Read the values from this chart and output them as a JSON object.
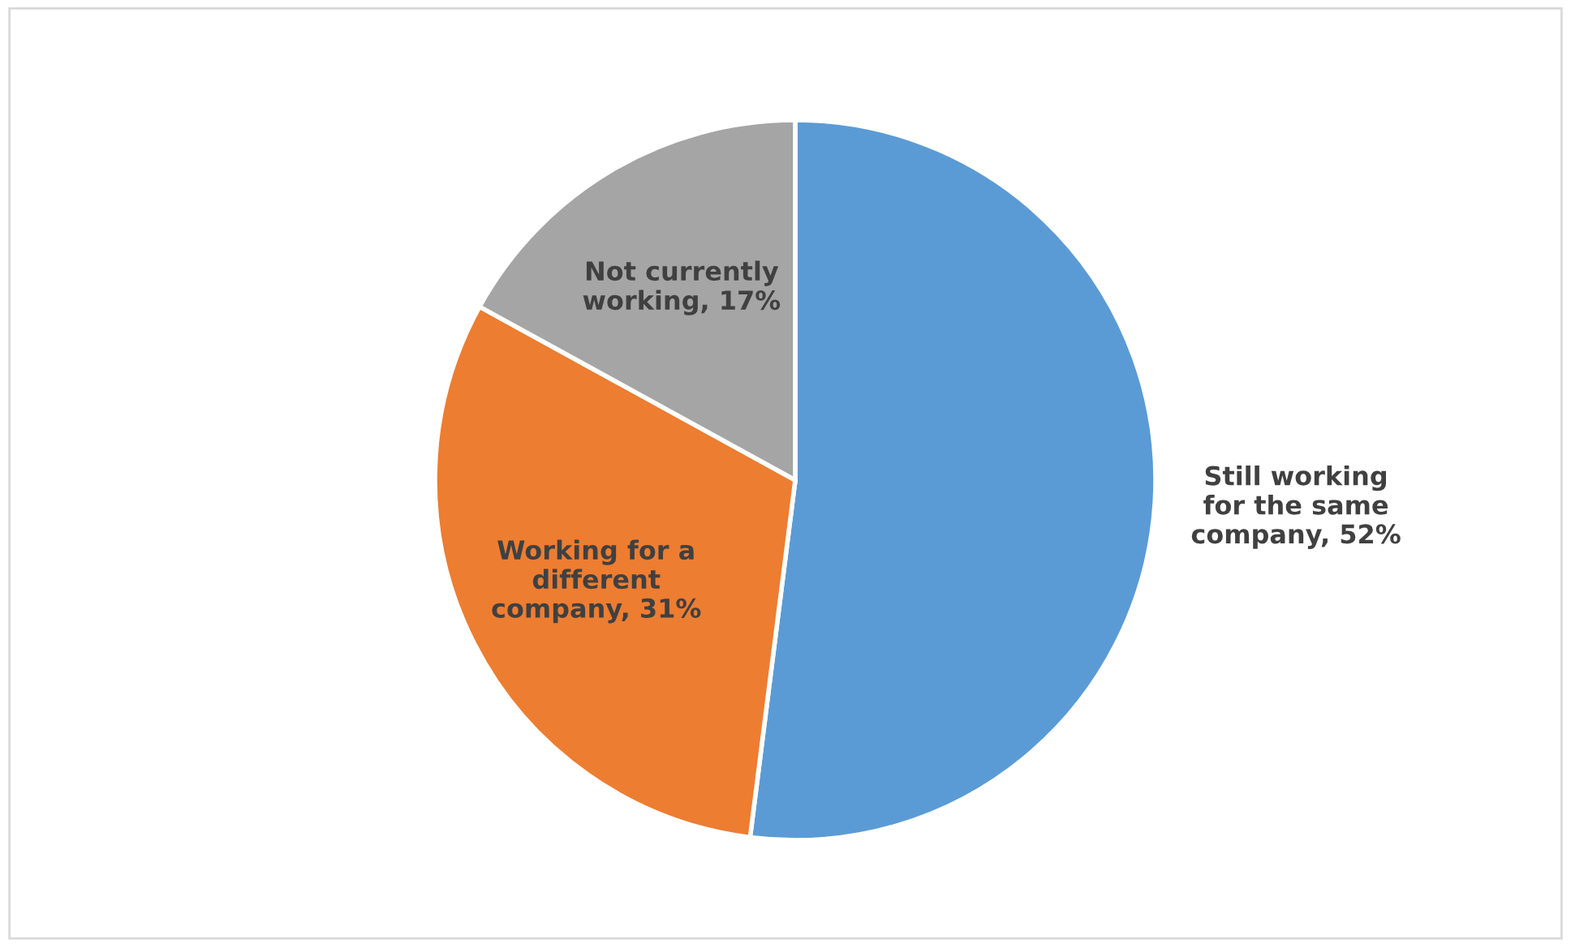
{
  "chart_data": {
    "type": "pie",
    "categories": [
      "Still working for the same company",
      "Working for a different company",
      "Not currently working"
    ],
    "values": [
      52,
      31,
      17
    ],
    "value_labels": [
      "52%",
      "31%",
      "17%"
    ],
    "colors": [
      "#5b9bd5",
      "#ed7d31",
      "#a5a5a5"
    ]
  }
}
